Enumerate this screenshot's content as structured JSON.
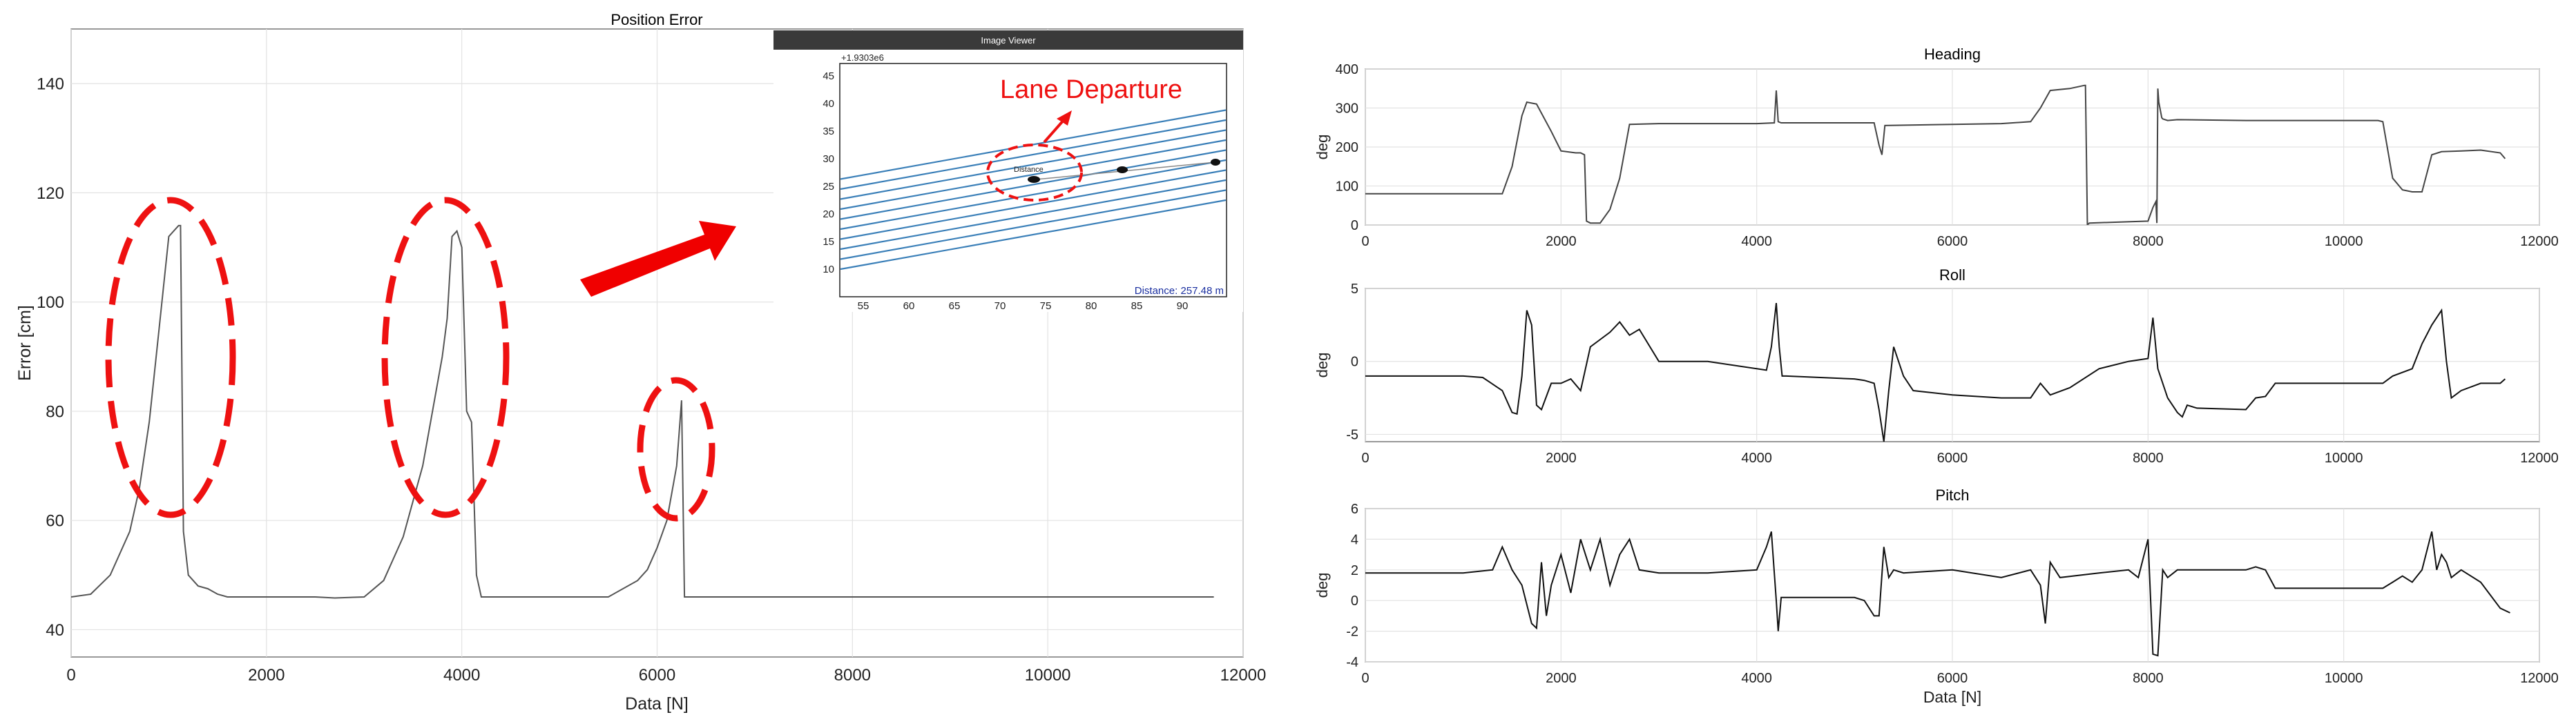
{
  "chart_data": [
    {
      "type": "line",
      "title": "Position Error",
      "xlabel": "Data [N]",
      "ylabel": "Error [cm]",
      "xlim": [
        0,
        12000
      ],
      "ylim": [
        35,
        150
      ],
      "xticks": [
        0,
        2000,
        4000,
        6000,
        8000,
        10000,
        12000
      ],
      "yticks": [
        40,
        60,
        80,
        100,
        120,
        140
      ],
      "grid": true,
      "series": [
        {
          "color": "#555555",
          "x": [
            0,
            200,
            400,
            600,
            700,
            800,
            900,
            1000,
            1100,
            1120,
            1150,
            1200,
            1300,
            1400,
            1500,
            1600,
            2000,
            2500,
            2700,
            3000,
            3200,
            3400,
            3600,
            3800,
            3850,
            3900,
            3950,
            4000,
            4050,
            4100,
            4150,
            4200,
            4500,
            5000,
            5500,
            5800,
            5900,
            6000,
            6100,
            6200,
            6250,
            6280,
            6300,
            6400,
            7000,
            8000,
            9000,
            10000,
            11000,
            11700
          ],
          "y": [
            46,
            46.5,
            50,
            58,
            66,
            78,
            95,
            112,
            114,
            114,
            58,
            50,
            48,
            47.5,
            46.5,
            46,
            46,
            46,
            45.8,
            46,
            49,
            57,
            70,
            90,
            97,
            112,
            113,
            110,
            80,
            78,
            50,
            46,
            46,
            46,
            46,
            49,
            51,
            55,
            60,
            70,
            82,
            46,
            46,
            46,
            46,
            46,
            46,
            46,
            46,
            46
          ]
        }
      ],
      "annotations": [
        "Lane Departure"
      ],
      "inset": {
        "title": "Image Viewer",
        "offset_label": "+1.9303e6",
        "xticks": [
          "55",
          "60",
          "65",
          "70",
          "75",
          "80",
          "85",
          "90"
        ],
        "yticks": [
          "10",
          "15",
          "20",
          "25",
          "30",
          "35",
          "40",
          "45"
        ],
        "point_label": "Distance",
        "distance_label": "Distance: 257.48 m"
      }
    },
    {
      "type": "line",
      "title": "Heading",
      "xlabel": "",
      "ylabel": "deg",
      "xlim": [
        0,
        12000
      ],
      "ylim": [
        0,
        400
      ],
      "xticks": [
        0,
        2000,
        4000,
        6000,
        8000,
        10000,
        12000
      ],
      "yticks": [
        0,
        100,
        200,
        300,
        400
      ],
      "grid": true,
      "series": [
        {
          "color": "#444444",
          "x": [
            0,
            1400,
            1500,
            1600,
            1650,
            1750,
            1900,
            2000,
            2150,
            2200,
            2240,
            2260,
            2300,
            2400,
            2500,
            2600,
            2700,
            3000,
            4000,
            4180,
            4200,
            4220,
            4250,
            5200,
            5250,
            5280,
            5310,
            6000,
            6500,
            6800,
            6900,
            7000,
            7200,
            7350,
            7360,
            7380,
            7400,
            8000,
            8050,
            8080,
            8090,
            8100,
            8110,
            8140,
            8150,
            8200,
            8300,
            9000,
            10000,
            10350,
            10400,
            10500,
            10600,
            10700,
            10800,
            10900,
            11000,
            11200,
            11400,
            11600,
            11650
          ],
          "y": [
            80,
            80,
            150,
            280,
            315,
            310,
            240,
            190,
            185,
            185,
            180,
            10,
            5,
            5,
            40,
            120,
            258,
            260,
            260,
            262,
            345,
            265,
            262,
            262,
            205,
            180,
            255,
            258,
            260,
            265,
            300,
            345,
            350,
            358,
            358,
            0,
            5,
            10,
            45,
            60,
            5,
            350,
            315,
            275,
            272,
            268,
            270,
            268,
            268,
            268,
            265,
            120,
            90,
            85,
            85,
            180,
            188,
            190,
            192,
            185,
            170
          ]
        }
      ]
    },
    {
      "type": "line",
      "title": "Roll",
      "xlabel": "",
      "ylabel": "deg",
      "xlim": [
        0,
        12000
      ],
      "ylim": [
        -5.5,
        5
      ],
      "xticks": [
        0,
        2000,
        4000,
        6000,
        8000,
        10000,
        12000
      ],
      "yticks": [
        -5,
        0,
        5
      ],
      "grid": true,
      "series": [
        {
          "color": "#111111",
          "x": [
            0,
            500,
            1000,
            1200,
            1400,
            1500,
            1550,
            1600,
            1650,
            1700,
            1750,
            1800,
            1900,
            2000,
            2100,
            2200,
            2300,
            2400,
            2500,
            2600,
            2700,
            2800,
            3000,
            3500,
            4000,
            4100,
            4150,
            4200,
            4230,
            4260,
            4300,
            5000,
            5100,
            5200,
            5250,
            5300,
            5350,
            5400,
            5500,
            5600,
            6000,
            6500,
            6800,
            6900,
            7000,
            7200,
            7500,
            7800,
            8000,
            8050,
            8100,
            8200,
            8300,
            8350,
            8400,
            8500,
            9000,
            9100,
            9200,
            9300,
            10000,
            10400,
            10500,
            10700,
            10800,
            10900,
            11000,
            11050,
            11100,
            11200,
            11400,
            11600,
            11650
          ],
          "y": [
            -1,
            -1,
            -1,
            -1.1,
            -2,
            -3.5,
            -3.6,
            -1,
            3.5,
            2.5,
            -3,
            -3.3,
            -1.5,
            -1.5,
            -1.2,
            -2,
            1,
            1.5,
            2,
            2.7,
            1.8,
            2.2,
            0,
            0,
            -0.5,
            -0.6,
            1,
            4,
            1,
            -1,
            -1,
            -1.2,
            -1.3,
            -1.5,
            -3.3,
            -5.5,
            -2,
            1,
            -1,
            -2,
            -2.3,
            -2.5,
            -2.5,
            -1.5,
            -2.3,
            -1.8,
            -0.5,
            0,
            0.2,
            3,
            -0.5,
            -2.5,
            -3.5,
            -3.8,
            -3,
            -3.2,
            -3.3,
            -2.5,
            -2.4,
            -1.5,
            -1.5,
            -1.5,
            -1,
            -0.5,
            1.2,
            2.5,
            3.5,
            0,
            -2.5,
            -2,
            -1.5,
            -1.5,
            -1.2
          ]
        }
      ]
    },
    {
      "type": "line",
      "title": "Pitch",
      "xlabel": "Data [N]",
      "ylabel": "deg",
      "xlim": [
        0,
        12000
      ],
      "ylim": [
        -4,
        6
      ],
      "xticks": [
        0,
        2000,
        4000,
        6000,
        8000,
        10000,
        12000
      ],
      "yticks": [
        -4,
        -2,
        0,
        2,
        4,
        6
      ],
      "grid": true,
      "series": [
        {
          "color": "#111111",
          "x": [
            0,
            500,
            1000,
            1300,
            1400,
            1500,
            1600,
            1700,
            1750,
            1800,
            1850,
            1900,
            2000,
            2100,
            2200,
            2300,
            2400,
            2500,
            2600,
            2700,
            2800,
            3000,
            3500,
            4000,
            4100,
            4150,
            4200,
            4220,
            4250,
            4300,
            5000,
            5100,
            5200,
            5250,
            5300,
            5350,
            5400,
            5500,
            6000,
            6500,
            6800,
            6900,
            6950,
            7000,
            7100,
            7500,
            7800,
            7900,
            8000,
            8050,
            8100,
            8150,
            8200,
            8300,
            9000,
            9100,
            9200,
            9300,
            10000,
            10400,
            10500,
            10600,
            10700,
            10800,
            10900,
            10950,
            11000,
            11050,
            11100,
            11200,
            11400,
            11600,
            11700
          ],
          "y": [
            1.8,
            1.8,
            1.8,
            2,
            3.5,
            2,
            1,
            -1.5,
            -1.8,
            2.5,
            -1,
            1,
            3,
            0.5,
            4,
            2,
            4,
            1,
            3,
            4,
            2,
            1.8,
            1.8,
            2,
            3.5,
            4.5,
            0,
            -2,
            0.2,
            0.2,
            0.2,
            0,
            -1,
            -1,
            3.5,
            1.5,
            2,
            1.8,
            2,
            1.5,
            2,
            1,
            -1.5,
            2.5,
            1.5,
            1.8,
            2,
            1.5,
            4,
            -3.5,
            -3.6,
            2,
            1.5,
            2,
            2,
            2.2,
            2,
            0.8,
            0.8,
            0.8,
            1.2,
            1.6,
            1.2,
            2,
            4.5,
            2,
            3,
            2.5,
            1.5,
            2,
            1.2,
            -0.5,
            -0.8
          ]
        }
      ]
    }
  ]
}
